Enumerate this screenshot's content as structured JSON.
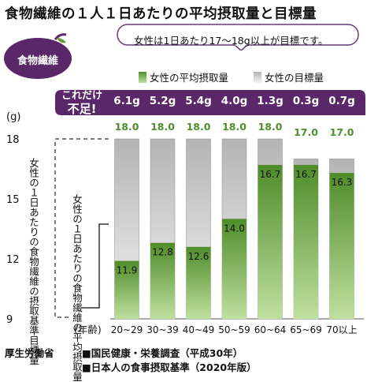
{
  "title": "食物繊維の１人１日あたりの平均摂取量と目標量",
  "badge": "食物繊維",
  "callout": "女性は1日あたり17～18g以上が目標です。",
  "band_label_lines": [
    "これだけ",
    "不足!"
  ],
  "vertical_labels": {
    "target": "女性の１日あたりの食物繊維の摂取基準目標量",
    "average": "女性の１日あたりの食物繊維の平均摂取量"
  },
  "source": {
    "org": "厚生労働省",
    "lines": [
      "■国民健康・栄養調査（平成30年）",
      "■日本人の食事摂取基準（2020年版）"
    ]
  },
  "colors": {
    "purple": "#5a2768",
    "green_dark": "#4f8c2a",
    "green_light": "#bfe09f",
    "gray_dark": "#b4b4b4",
    "gray_light": "#f4f4f4",
    "target_text": "#4e8f2c"
  },
  "chart_data": {
    "type": "bar",
    "ylabel": "(g)",
    "ylim": [
      9,
      18
    ],
    "yticks": [
      9,
      12,
      15,
      18
    ],
    "xaxis_prefix": "(年齢)",
    "categories": [
      "20~29",
      "30~39",
      "40~49",
      "50~59",
      "60~64",
      "65~69",
      "70以上"
    ],
    "legend": [
      "女性の平均摂取量",
      "女性の目標量"
    ],
    "legend_placement": "top",
    "series": [
      {
        "name": "女性の目標量",
        "values": [
          18.0,
          18.0,
          18.0,
          18.0,
          18.0,
          17.0,
          17.0
        ],
        "labels": [
          "18.0",
          "18.0",
          "18.0",
          "18.0",
          "18.0",
          "17.0",
          "17.0"
        ]
      },
      {
        "name": "女性の平均摂取量",
        "values": [
          11.9,
          12.8,
          12.6,
          14.0,
          16.7,
          16.7,
          16.3
        ],
        "labels": [
          "11.9",
          "12.8",
          "12.6",
          "14.0",
          "16.7",
          "16.7",
          "16.3"
        ]
      }
    ],
    "shortfall_labels": [
      "6.1g",
      "5.2g",
      "5.4g",
      "4.0g",
      "1.3g",
      "0.3g",
      "0.7g"
    ]
  }
}
